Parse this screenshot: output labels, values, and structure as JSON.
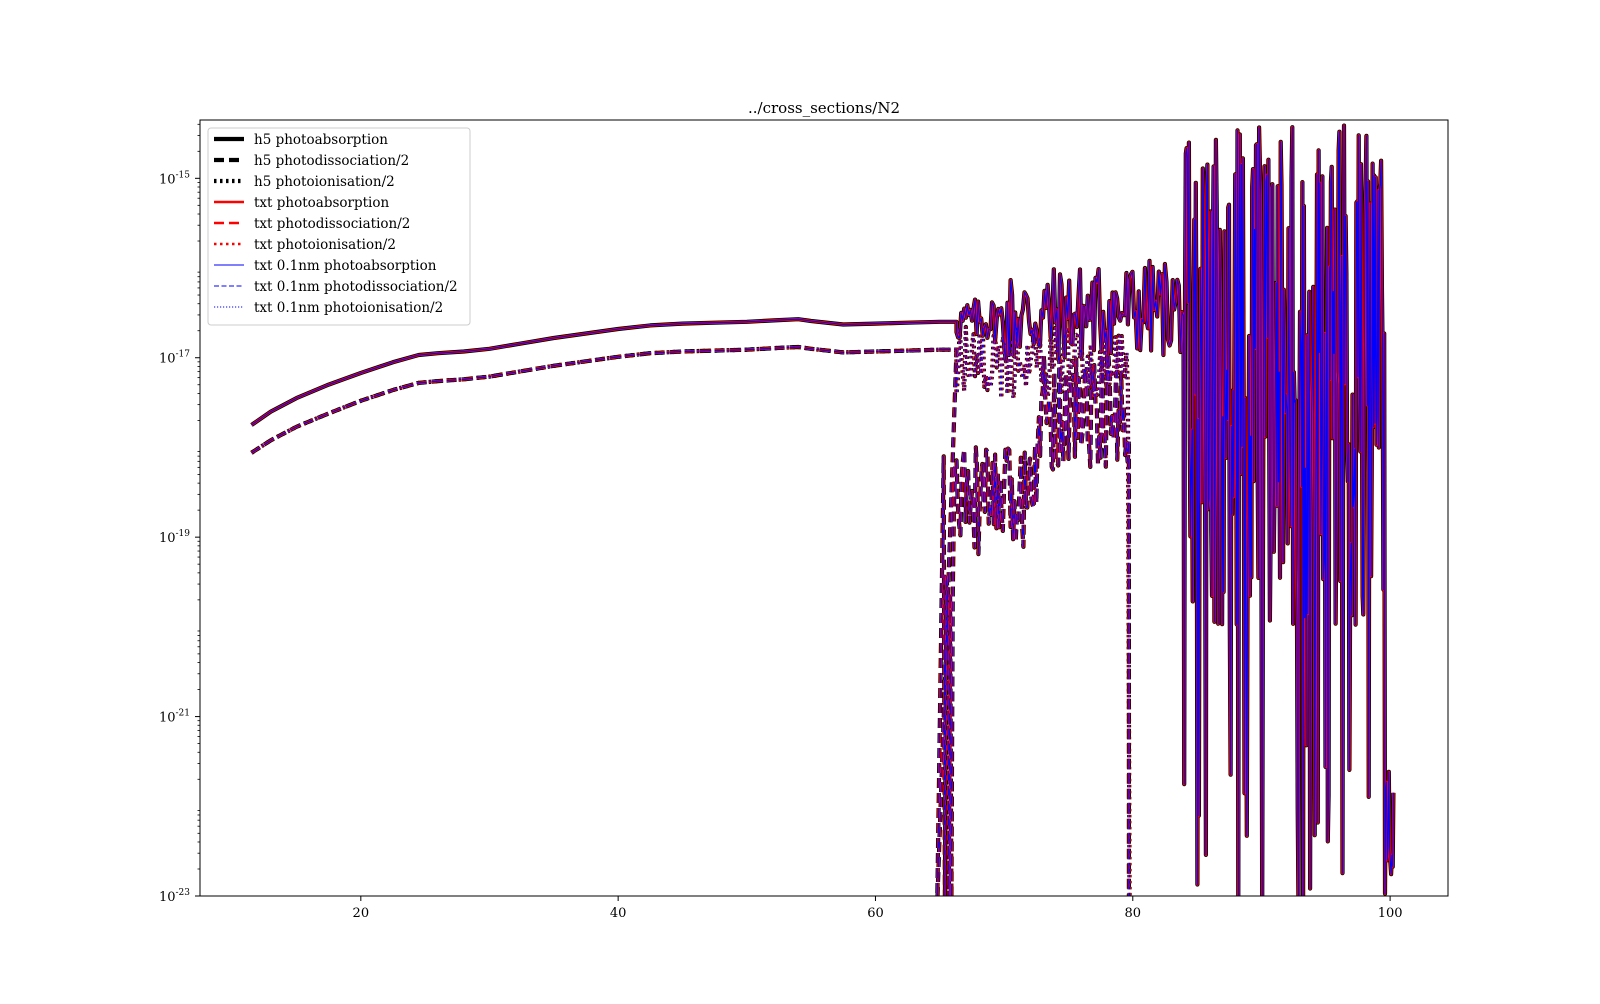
{
  "chart_data": {
    "type": "line",
    "title": "../cross_sections/N2",
    "xlabel": "",
    "ylabel": "",
    "xlim": [
      7.5,
      104.5
    ],
    "ylim_exponent": [
      -23,
      -14.35
    ],
    "y_scale": "log",
    "grid": false,
    "legend_position": "top-left",
    "x_ticks": [
      {
        "value": 20,
        "label": "20"
      },
      {
        "value": 40,
        "label": "40"
      },
      {
        "value": 60,
        "label": "60"
      },
      {
        "value": 80,
        "label": "80"
      },
      {
        "value": 100,
        "label": "100"
      }
    ],
    "y_ticks": [
      {
        "exp": -15,
        "base": "10",
        "sup": "-15"
      },
      {
        "exp": -17,
        "base": "10",
        "sup": "-17"
      },
      {
        "exp": -19,
        "base": "10",
        "sup": "-19"
      },
      {
        "exp": -21,
        "base": "10",
        "sup": "-21"
      },
      {
        "exp": -23,
        "base": "10",
        "sup": "-23"
      }
    ],
    "smooth_photoabsorption": {
      "x": [
        11.5,
        13,
        15,
        17.5,
        20,
        22.5,
        24.5,
        26,
        28,
        30,
        32.5,
        35,
        37.5,
        40,
        42.5,
        45,
        47.5,
        50,
        52.5,
        54,
        55,
        57.5,
        60,
        62.5,
        65,
        66.3
      ],
      "log_y": [
        -17.75,
        -17.6,
        -17.45,
        -17.3,
        -17.17,
        -17.05,
        -16.97,
        -16.95,
        -16.93,
        -16.9,
        -16.84,
        -16.78,
        -16.73,
        -16.68,
        -16.64,
        -16.62,
        -16.61,
        -16.6,
        -16.58,
        -16.57,
        -16.59,
        -16.63,
        -16.62,
        -16.61,
        -16.6,
        -16.6
      ]
    },
    "smooth_half": {
      "x": [
        11.5,
        13,
        15,
        17.5,
        20,
        22.5,
        24.5,
        26,
        28,
        30,
        32.5,
        35,
        37.5,
        40,
        42.5,
        45,
        47.5,
        50,
        52.5,
        54,
        55,
        57.5,
        60,
        62.5,
        65,
        66.3
      ],
      "log_y": [
        -18.06,
        -17.92,
        -17.77,
        -17.62,
        -17.48,
        -17.36,
        -17.28,
        -17.26,
        -17.24,
        -17.21,
        -17.15,
        -17.09,
        -17.04,
        -16.99,
        -16.95,
        -16.93,
        -16.92,
        -16.91,
        -16.89,
        -16.88,
        -16.9,
        -16.94,
        -16.93,
        -16.92,
        -16.91,
        -16.91
      ]
    },
    "series": [
      {
        "name": "h5 photoabsorption",
        "color": "#000000",
        "dash": "solid",
        "width": "thick"
      },
      {
        "name": "h5 photodissociation/2",
        "color": "#000000",
        "dash": "dashed",
        "width": "thick"
      },
      {
        "name": "h5 photoionisation/2",
        "color": "#000000",
        "dash": "dotted",
        "width": "thick"
      },
      {
        "name": "txt photoabsorption",
        "color": "#ff0000",
        "dash": "solid",
        "width": "medium"
      },
      {
        "name": "txt photodissociation/2",
        "color": "#ff0000",
        "dash": "dashed",
        "width": "medium"
      },
      {
        "name": "txt photoionisation/2",
        "color": "#ff0000",
        "dash": "dotted",
        "width": "medium"
      },
      {
        "name": "txt 0.1nm photoabsorption",
        "color": "#0000ff",
        "dash": "solid",
        "width": "thin"
      },
      {
        "name": "txt 0.1nm photodissociation/2",
        "color": "#0000ff",
        "dash": "dashed",
        "width": "thin"
      },
      {
        "name": "txt 0.1nm photoionisation/2",
        "color": "#0000ff",
        "dash": "dotted",
        "width": "thin"
      }
    ],
    "noisy_regions": [
      {
        "label": "photoabsorption 66-84 nm",
        "x_range": [
          66.3,
          84
        ],
        "log_y_range": [
          -17.3,
          -15.7
        ],
        "center_log_y": -16.6
      },
      {
        "label": "photodissociation/2 65-80 nm",
        "x_range": [
          64.8,
          79.7
        ],
        "log_y_range": [
          -23,
          -17.1
        ],
        "center_log_y": -18.5
      },
      {
        "label": "photoionisation/2 66-80 nm",
        "x_range": [
          66.3,
          79.7
        ],
        "log_y_range": [
          -17.8,
          -16.7
        ],
        "center_log_y": -17.2
      },
      {
        "label": "photoabsorption 84-100.3 nm",
        "x_range": [
          84,
          100.3
        ],
        "log_y_range": [
          -23,
          -14.35
        ],
        "center_log_y": -17.3
      }
    ]
  }
}
